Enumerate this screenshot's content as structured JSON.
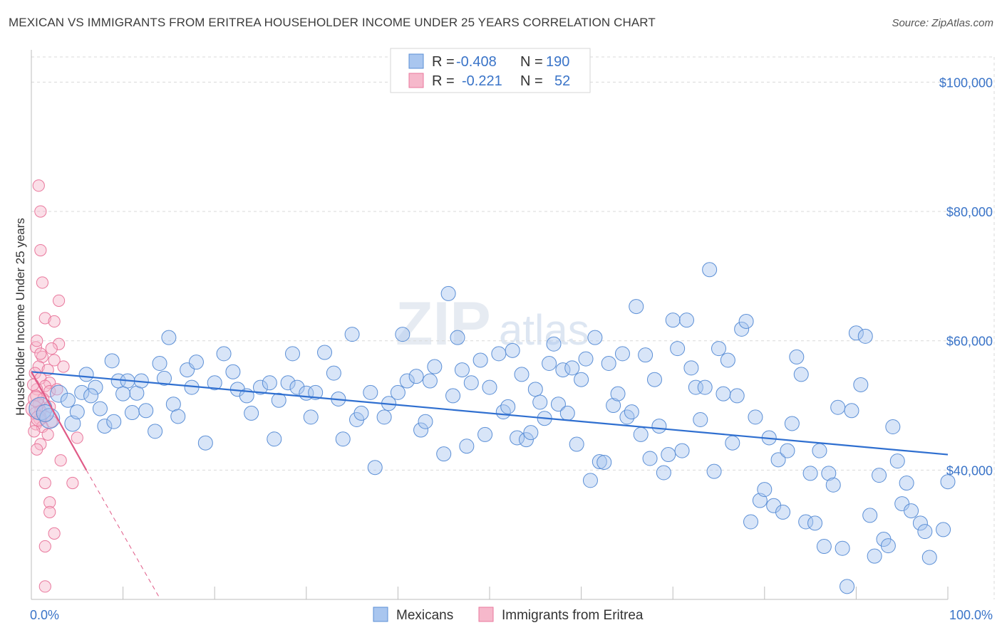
{
  "title": "MEXICAN VS IMMIGRANTS FROM ERITREA HOUSEHOLDER INCOME UNDER 25 YEARS CORRELATION CHART",
  "source": "Source: ZipAtlas.com",
  "watermark": {
    "zip": "ZIP",
    "atlas": "atlas"
  },
  "colors": {
    "blue_fill": "#a9c6ef",
    "blue_stroke": "#5b8fd6",
    "blue_line": "#2f6fd0",
    "pink_fill": "#f6b8cb",
    "pink_stroke": "#e9779c",
    "pink_line": "#e05a87",
    "axis_label": "#3a74c8"
  },
  "legend": {
    "rows": [
      {
        "r_label": "R =",
        "r_value": "-0.408",
        "n_label": "N =",
        "n_value": "190"
      },
      {
        "r_label": "R =",
        "r_value": "-0.221",
        "n_label": "N =",
        "n_value": "52"
      }
    ]
  },
  "bottom_legend": [
    "Mexicans",
    "Immigrants from Eritrea"
  ],
  "chart_data": {
    "type": "scatter",
    "title": "MEXICAN VS IMMIGRANTS FROM ERITREA HOUSEHOLDER INCOME UNDER 25 YEARS CORRELATION CHART",
    "xlabel": "",
    "ylabel": "Householder Income Under 25 years",
    "xlim": [
      0,
      100
    ],
    "ylim": [
      20000,
      105000
    ],
    "x_tick_labels": [
      "0.0%",
      "100.0%"
    ],
    "y_ticks": [
      40000,
      60000,
      80000,
      100000
    ],
    "y_tick_labels": [
      "$40,000",
      "$60,000",
      "$80,000",
      "$100,000"
    ],
    "grid": true,
    "legend_position": "top-center",
    "series": [
      {
        "name": "Mexicans",
        "color": "#a9c6ef",
        "trend": {
          "x": [
            0,
            100
          ],
          "y": [
            55200,
            42400
          ]
        },
        "points": [
          [
            1.0,
            49500,
            1.6
          ],
          [
            2.0,
            48000,
            1.4
          ],
          [
            1.5,
            48800,
            1.2
          ],
          [
            3.0,
            51800,
            1.2
          ],
          [
            4.5,
            47200,
            1.1
          ],
          [
            5.5,
            52000,
            1.0
          ],
          [
            6.0,
            54800,
            1.0
          ],
          [
            7.0,
            52800,
            1.0
          ],
          [
            7.5,
            49500,
            1.0
          ],
          [
            8.0,
            46800,
            1.0
          ],
          [
            5.0,
            49000,
            1.0
          ],
          [
            6.5,
            51500,
            1.0
          ],
          [
            4.0,
            50800,
            1.0
          ],
          [
            8.8,
            56900,
            1.0
          ],
          [
            9.5,
            53800,
            1.0
          ],
          [
            10.5,
            53800,
            1.0
          ],
          [
            11.0,
            48900,
            1.0
          ],
          [
            11.5,
            51900,
            1.0
          ],
          [
            12.5,
            49200,
            1.0
          ],
          [
            13.5,
            46000,
            1.0
          ],
          [
            9.0,
            47500,
            1.0
          ],
          [
            10.0,
            51800,
            1.0
          ],
          [
            12.0,
            53800,
            1.0
          ],
          [
            14.0,
            56500,
            1.0
          ],
          [
            14.5,
            54200,
            1.0
          ],
          [
            15.0,
            60500,
            1.0
          ],
          [
            15.5,
            50200,
            1.0
          ],
          [
            16.0,
            48300,
            1.0
          ],
          [
            17.0,
            55500,
            1.0
          ],
          [
            18.0,
            56700,
            1.0
          ],
          [
            17.5,
            52800,
            1.0
          ],
          [
            19.0,
            44200,
            1.0
          ],
          [
            20.0,
            53500,
            1.0
          ],
          [
            21.0,
            58000,
            1.0
          ],
          [
            22.0,
            55200,
            1.0
          ],
          [
            22.5,
            52500,
            1.0
          ],
          [
            23.5,
            51500,
            1.0
          ],
          [
            24.0,
            48800,
            1.0
          ],
          [
            25.0,
            52800,
            1.0
          ],
          [
            26.0,
            53500,
            1.0
          ],
          [
            26.5,
            44800,
            1.0
          ],
          [
            27.0,
            50800,
            1.0
          ],
          [
            28.0,
            53500,
            1.0
          ],
          [
            28.5,
            58000,
            1.0
          ],
          [
            29.0,
            52800,
            1.0
          ],
          [
            30.0,
            51900,
            1.0
          ],
          [
            30.5,
            48200,
            1.0
          ],
          [
            31.0,
            52000,
            1.0
          ],
          [
            32.0,
            58200,
            1.0
          ],
          [
            33.0,
            55000,
            1.0
          ],
          [
            33.5,
            51000,
            1.0
          ],
          [
            34.0,
            44800,
            1.0
          ],
          [
            35.0,
            61000,
            1.0
          ],
          [
            35.5,
            47800,
            1.0
          ],
          [
            36.0,
            48800,
            1.0
          ],
          [
            37.0,
            52000,
            1.0
          ],
          [
            37.5,
            40400,
            1.0
          ],
          [
            38.5,
            48200,
            1.0
          ],
          [
            39.0,
            50300,
            1.0
          ],
          [
            40.0,
            52000,
            1.0
          ],
          [
            40.5,
            61000,
            1.0
          ],
          [
            41.0,
            53800,
            1.0
          ],
          [
            42.0,
            54500,
            1.0
          ],
          [
            42.5,
            46200,
            1.0
          ],
          [
            43.0,
            47500,
            1.0
          ],
          [
            43.5,
            53800,
            1.0
          ],
          [
            44.0,
            56000,
            1.0
          ],
          [
            45.0,
            42500,
            1.0
          ],
          [
            45.5,
            67300,
            1.0
          ],
          [
            46.0,
            51500,
            1.0
          ],
          [
            46.5,
            60500,
            1.0
          ],
          [
            47.0,
            55500,
            1.0
          ],
          [
            47.5,
            43700,
            1.0
          ],
          [
            48.0,
            53500,
            1.0
          ],
          [
            49.0,
            57000,
            1.0
          ],
          [
            49.5,
            45500,
            1.0
          ],
          [
            50.0,
            52800,
            1.0
          ],
          [
            51.0,
            58000,
            1.0
          ],
          [
            51.5,
            49000,
            1.0
          ],
          [
            52.0,
            49800,
            1.0
          ],
          [
            52.5,
            58500,
            1.0
          ],
          [
            53.0,
            45000,
            1.0
          ],
          [
            53.5,
            54800,
            1.0
          ],
          [
            54.0,
            44700,
            1.0
          ],
          [
            54.5,
            45800,
            1.0
          ],
          [
            55.0,
            52500,
            1.0
          ],
          [
            55.5,
            50500,
            1.0
          ],
          [
            56.0,
            48000,
            1.0
          ],
          [
            56.5,
            56500,
            1.0
          ],
          [
            57.0,
            59500,
            1.0
          ],
          [
            57.5,
            50200,
            1.0
          ],
          [
            58.0,
            55500,
            1.0
          ],
          [
            58.5,
            48800,
            1.0
          ],
          [
            59.0,
            55800,
            1.0
          ],
          [
            59.5,
            44000,
            1.0
          ],
          [
            60.0,
            54000,
            1.0
          ],
          [
            60.5,
            57200,
            1.0
          ],
          [
            61.0,
            38400,
            1.0
          ],
          [
            61.5,
            60500,
            1.0
          ],
          [
            62.0,
            41300,
            1.0
          ],
          [
            62.5,
            41200,
            1.0
          ],
          [
            63.0,
            56500,
            1.0
          ],
          [
            63.5,
            50000,
            1.0
          ],
          [
            64.0,
            51800,
            1.0
          ],
          [
            64.5,
            58000,
            1.0
          ],
          [
            65.0,
            48200,
            1.0
          ],
          [
            65.5,
            49000,
            1.0
          ],
          [
            66.0,
            65300,
            1.0
          ],
          [
            66.5,
            45500,
            1.0
          ],
          [
            67.0,
            57800,
            1.0
          ],
          [
            67.5,
            41800,
            1.0
          ],
          [
            68.0,
            54000,
            1.0
          ],
          [
            68.5,
            46800,
            1.0
          ],
          [
            69.0,
            39600,
            1.0
          ],
          [
            69.5,
            42400,
            1.0
          ],
          [
            70.0,
            63200,
            1.0
          ],
          [
            70.5,
            58800,
            1.0
          ],
          [
            71.0,
            43000,
            1.0
          ],
          [
            71.5,
            63200,
            1.0
          ],
          [
            72.0,
            55800,
            1.0
          ],
          [
            72.5,
            52800,
            1.0
          ],
          [
            73.0,
            47800,
            1.0
          ],
          [
            73.5,
            52800,
            1.0
          ],
          [
            74.0,
            71000,
            1.0
          ],
          [
            74.5,
            39800,
            1.0
          ],
          [
            75.0,
            58800,
            1.0
          ],
          [
            75.5,
            51800,
            1.0
          ],
          [
            76.0,
            57000,
            1.0
          ],
          [
            76.5,
            44200,
            1.0
          ],
          [
            77.0,
            51500,
            1.0
          ],
          [
            77.5,
            61800,
            1.0
          ],
          [
            78.0,
            63000,
            1.0
          ],
          [
            78.5,
            32000,
            1.0
          ],
          [
            79.0,
            48200,
            1.0
          ],
          [
            79.5,
            35300,
            1.0
          ],
          [
            80.0,
            37000,
            1.0
          ],
          [
            80.5,
            45000,
            1.0
          ],
          [
            81.0,
            34500,
            1.0
          ],
          [
            81.5,
            41600,
            1.0
          ],
          [
            82.0,
            33500,
            1.0
          ],
          [
            82.5,
            43000,
            1.0
          ],
          [
            83.0,
            47200,
            1.0
          ],
          [
            83.5,
            57500,
            1.0
          ],
          [
            84.0,
            54800,
            1.0
          ],
          [
            84.5,
            32000,
            1.0
          ],
          [
            85.0,
            39500,
            1.0
          ],
          [
            85.5,
            31800,
            1.0
          ],
          [
            86.0,
            43000,
            1.0
          ],
          [
            86.5,
            28200,
            1.0
          ],
          [
            87.0,
            39500,
            1.0
          ],
          [
            87.5,
            37700,
            1.0
          ],
          [
            88.0,
            49700,
            1.0
          ],
          [
            88.5,
            27900,
            1.0
          ],
          [
            89.0,
            22000,
            1.0
          ],
          [
            89.5,
            49200,
            1.0
          ],
          [
            90.0,
            61200,
            1.0
          ],
          [
            90.5,
            53200,
            1.0
          ],
          [
            91.0,
            60700,
            1.0
          ],
          [
            91.5,
            33000,
            1.0
          ],
          [
            92.0,
            26700,
            1.0
          ],
          [
            92.5,
            39200,
            1.0
          ],
          [
            93.0,
            29300,
            1.0
          ],
          [
            93.5,
            28300,
            1.0
          ],
          [
            94.0,
            46700,
            1.0
          ],
          [
            94.5,
            41400,
            1.0
          ],
          [
            95.0,
            34800,
            1.0
          ],
          [
            95.5,
            38000,
            1.0
          ],
          [
            96.0,
            33700,
            1.0
          ],
          [
            97.0,
            31800,
            1.0
          ],
          [
            97.5,
            30500,
            1.0
          ],
          [
            98.0,
            26500,
            1.0
          ],
          [
            99.5,
            30800,
            1.0
          ],
          [
            100.0,
            38200,
            1.0
          ]
        ]
      },
      {
        "name": "Immigrants from Eritrea",
        "color": "#f6b8cb",
        "trend": {
          "x": [
            0,
            6.0
          ],
          "y": [
            55200,
            40000
          ],
          "dashed_to": {
            "x": [
              6.0,
              14.0
            ],
            "y": [
              40000,
              20200
            ]
          }
        },
        "points": [
          [
            0.8,
            84000,
            0.9
          ],
          [
            1.0,
            80000,
            0.9
          ],
          [
            1.0,
            74000,
            0.9
          ],
          [
            1.2,
            69000,
            0.9
          ],
          [
            3.0,
            66200,
            0.9
          ],
          [
            1.5,
            63500,
            0.9
          ],
          [
            2.5,
            63000,
            0.9
          ],
          [
            3.0,
            59500,
            0.9
          ],
          [
            0.5,
            59000,
            0.9
          ],
          [
            2.2,
            58800,
            0.9
          ],
          [
            1.2,
            57500,
            0.9
          ],
          [
            2.5,
            57000,
            0.9
          ],
          [
            0.8,
            56000,
            0.9
          ],
          [
            1.8,
            55500,
            0.9
          ],
          [
            0.4,
            55000,
            0.9
          ],
          [
            1.0,
            54200,
            0.9
          ],
          [
            2.0,
            53500,
            0.9
          ],
          [
            1.5,
            53000,
            0.9
          ],
          [
            0.6,
            52500,
            0.9
          ],
          [
            2.0,
            52200,
            0.9
          ],
          [
            0.5,
            51500,
            0.9
          ],
          [
            1.3,
            51000,
            0.9
          ],
          [
            0.8,
            50200,
            0.9
          ],
          [
            2.0,
            49800,
            0.9
          ],
          [
            1.0,
            49200,
            0.9
          ],
          [
            0.4,
            48800,
            0.9
          ],
          [
            1.5,
            48300,
            0.9
          ],
          [
            0.9,
            47900,
            0.9
          ],
          [
            2.2,
            47500,
            0.9
          ],
          [
            0.5,
            47100,
            0.9
          ],
          [
            1.2,
            46700,
            0.9
          ],
          [
            0.3,
            46000,
            0.9
          ],
          [
            1.8,
            45500,
            0.9
          ],
          [
            5.0,
            45000,
            0.9
          ],
          [
            1.0,
            44000,
            0.9
          ],
          [
            0.6,
            43200,
            0.9
          ],
          [
            3.2,
            41500,
            0.9
          ],
          [
            1.5,
            38000,
            0.9
          ],
          [
            4.5,
            38000,
            0.9
          ],
          [
            2.0,
            35000,
            0.9
          ],
          [
            2.0,
            33500,
            0.9
          ],
          [
            2.5,
            30200,
            0.9
          ],
          [
            1.5,
            28200,
            0.9
          ],
          [
            1.5,
            22000,
            0.9
          ],
          [
            0.3,
            49500,
            1.3
          ],
          [
            0.5,
            51000,
            1.2
          ],
          [
            0.8,
            48000,
            1.2
          ],
          [
            2.8,
            52500,
            0.9
          ],
          [
            0.2,
            53200,
            0.9
          ],
          [
            1.0,
            58000,
            0.9
          ],
          [
            3.5,
            56000,
            0.9
          ],
          [
            0.6,
            60000,
            0.9
          ]
        ]
      }
    ]
  }
}
